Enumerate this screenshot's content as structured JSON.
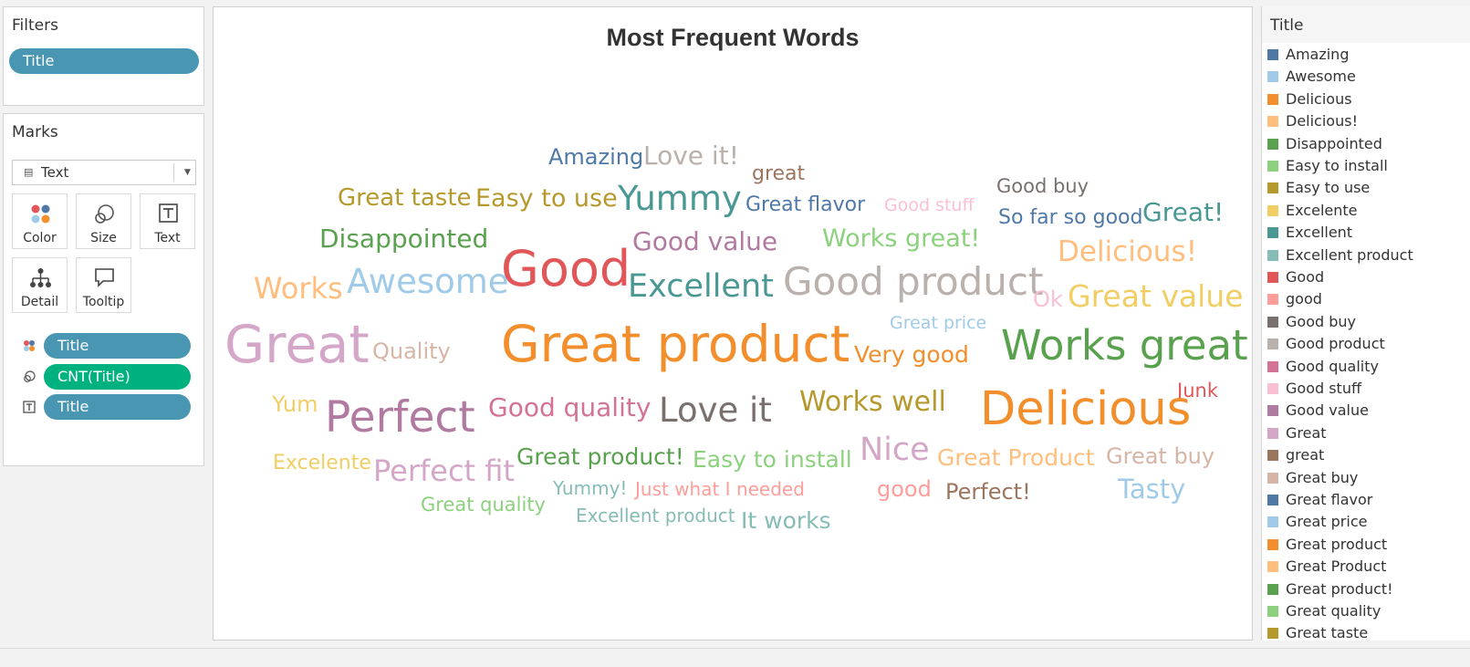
{
  "filters": {
    "title": "Filters",
    "pill": "Title"
  },
  "marks": {
    "title": "Marks",
    "mark_type": "Text",
    "cards": [
      {
        "label": "Color",
        "icon": "color-icon"
      },
      {
        "label": "Size",
        "icon": "size-icon"
      },
      {
        "label": "Text",
        "icon": "text-icon"
      },
      {
        "label": "Detail",
        "icon": "detail-icon"
      },
      {
        "label": "Tooltip",
        "icon": "tooltip-icon"
      }
    ],
    "shelf": [
      {
        "icon": "color-icon",
        "label": "Title",
        "color": "#4996b2"
      },
      {
        "icon": "size-icon",
        "label": "CNT(Title)",
        "color": "#00b180"
      },
      {
        "icon": "text-icon",
        "label": "Title",
        "color": "#4996b2"
      }
    ]
  },
  "viz": {
    "title": "Most Frequent Words"
  },
  "words": [
    {
      "text": "Amazing",
      "color": "#4e79a7",
      "size": 24
    },
    {
      "text": "Love it!",
      "color": "#bab0ac",
      "size": 28
    },
    {
      "text": "great",
      "color": "#9c755f",
      "size": 22
    },
    {
      "text": "Good buy",
      "color": "#79706e",
      "size": 21
    },
    {
      "text": "Great taste",
      "color": "#b6992d",
      "size": 26
    },
    {
      "text": "Easy to use",
      "color": "#b6992d",
      "size": 27
    },
    {
      "text": "Yummy",
      "color": "#499894",
      "size": 37
    },
    {
      "text": "Great flavor",
      "color": "#4e79a7",
      "size": 22
    },
    {
      "text": "Good stuff",
      "color": "#fabfd2",
      "size": 19
    },
    {
      "text": "So far so good",
      "color": "#4e79a7",
      "size": 22
    },
    {
      "text": "Great!",
      "color": "#499894",
      "size": 28
    },
    {
      "text": "Disappointed",
      "color": "#59a14f",
      "size": 28
    },
    {
      "text": "Good value",
      "color": "#b07aa1",
      "size": 28
    },
    {
      "text": "Works great!",
      "color": "#8cd17d",
      "size": 27
    },
    {
      "text": "Delicious!",
      "color": "#ffbe7d",
      "size": 31
    },
    {
      "text": "Works",
      "color": "#ffbe7d",
      "size": 32
    },
    {
      "text": "Awesome",
      "color": "#a0cbe8",
      "size": 37
    },
    {
      "text": "Good",
      "color": "#e15759",
      "size": 54
    },
    {
      "text": "Excellent",
      "color": "#499894",
      "size": 35
    },
    {
      "text": "Good product",
      "color": "#bab0ac",
      "size": 42
    },
    {
      "text": "Ok",
      "color": "#fabfd2",
      "size": 24
    },
    {
      "text": "Great value",
      "color": "#f1ce63",
      "size": 33
    },
    {
      "text": "Great price",
      "color": "#a0cbe8",
      "size": 19
    },
    {
      "text": "Great",
      "color": "#d4a6c8",
      "size": 57
    },
    {
      "text": "Quality",
      "color": "#d7b5a6",
      "size": 24
    },
    {
      "text": "Great product",
      "color": "#f28e2b",
      "size": 55
    },
    {
      "text": "Very good",
      "color": "#f28e2b",
      "size": 25
    },
    {
      "text": "Works great",
      "color": "#59a14f",
      "size": 45
    },
    {
      "text": "Junk",
      "color": "#e15759",
      "size": 21
    },
    {
      "text": "Yum",
      "color": "#f1ce63",
      "size": 24
    },
    {
      "text": "Perfect",
      "color": "#b07aa1",
      "size": 47
    },
    {
      "text": "Good quality",
      "color": "#d37295",
      "size": 28
    },
    {
      "text": "Love it",
      "color": "#79706e",
      "size": 37
    },
    {
      "text": "Works well",
      "color": "#b6992d",
      "size": 30
    },
    {
      "text": "Delicious",
      "color": "#f28e2b",
      "size": 51
    },
    {
      "text": "Excelente",
      "color": "#f1ce63",
      "size": 22
    },
    {
      "text": "Perfect fit",
      "color": "#d4a6c8",
      "size": 32
    },
    {
      "text": "Great product!",
      "color": "#59a14f",
      "size": 25
    },
    {
      "text": "Easy to install",
      "color": "#8cd17d",
      "size": 25
    },
    {
      "text": "Nice",
      "color": "#d4a6c8",
      "size": 35
    },
    {
      "text": "Great Product",
      "color": "#ffbe7d",
      "size": 25
    },
    {
      "text": "Great buy",
      "color": "#d7b5a6",
      "size": 24
    },
    {
      "text": "Yummy!",
      "color": "#86bcb6",
      "size": 20
    },
    {
      "text": "Just what I needed",
      "color": "#ff9d9a",
      "size": 20
    },
    {
      "text": "good",
      "color": "#ff9d9a",
      "size": 24
    },
    {
      "text": "Perfect!",
      "color": "#9c755f",
      "size": 24
    },
    {
      "text": "Tasty",
      "color": "#a0cbe8",
      "size": 29
    },
    {
      "text": "Great quality",
      "color": "#8cd17d",
      "size": 21
    },
    {
      "text": "Excellent product",
      "color": "#86bcb6",
      "size": 20
    },
    {
      "text": "It works",
      "color": "#86bcb6",
      "size": 25
    }
  ],
  "legend": {
    "title": "Title",
    "items": [
      {
        "label": "Amazing",
        "color": "#4e79a7"
      },
      {
        "label": "Awesome",
        "color": "#a0cbe8"
      },
      {
        "label": "Delicious",
        "color": "#f28e2b"
      },
      {
        "label": "Delicious!",
        "color": "#ffbe7d"
      },
      {
        "label": "Disappointed",
        "color": "#59a14f"
      },
      {
        "label": "Easy to install",
        "color": "#8cd17d"
      },
      {
        "label": "Easy to use",
        "color": "#b6992d"
      },
      {
        "label": "Excelente",
        "color": "#f1ce63"
      },
      {
        "label": "Excellent",
        "color": "#499894"
      },
      {
        "label": "Excellent product",
        "color": "#86bcb6"
      },
      {
        "label": "Good",
        "color": "#e15759"
      },
      {
        "label": "good",
        "color": "#ff9d9a"
      },
      {
        "label": "Good buy",
        "color": "#79706e"
      },
      {
        "label": "Good product",
        "color": "#bab0ac"
      },
      {
        "label": "Good quality",
        "color": "#d37295"
      },
      {
        "label": "Good stuff",
        "color": "#fabfd2"
      },
      {
        "label": "Good value",
        "color": "#b07aa1"
      },
      {
        "label": "Great",
        "color": "#d4a6c8"
      },
      {
        "label": "great",
        "color": "#9c755f"
      },
      {
        "label": "Great buy",
        "color": "#d7b5a6"
      },
      {
        "label": "Great flavor",
        "color": "#4e79a7"
      },
      {
        "label": "Great price",
        "color": "#a0cbe8"
      },
      {
        "label": "Great product",
        "color": "#f28e2b"
      },
      {
        "label": "Great Product",
        "color": "#ffbe7d"
      },
      {
        "label": "Great product!",
        "color": "#59a14f"
      },
      {
        "label": "Great quality",
        "color": "#8cd17d"
      },
      {
        "label": "Great taste",
        "color": "#b6992d"
      }
    ]
  }
}
